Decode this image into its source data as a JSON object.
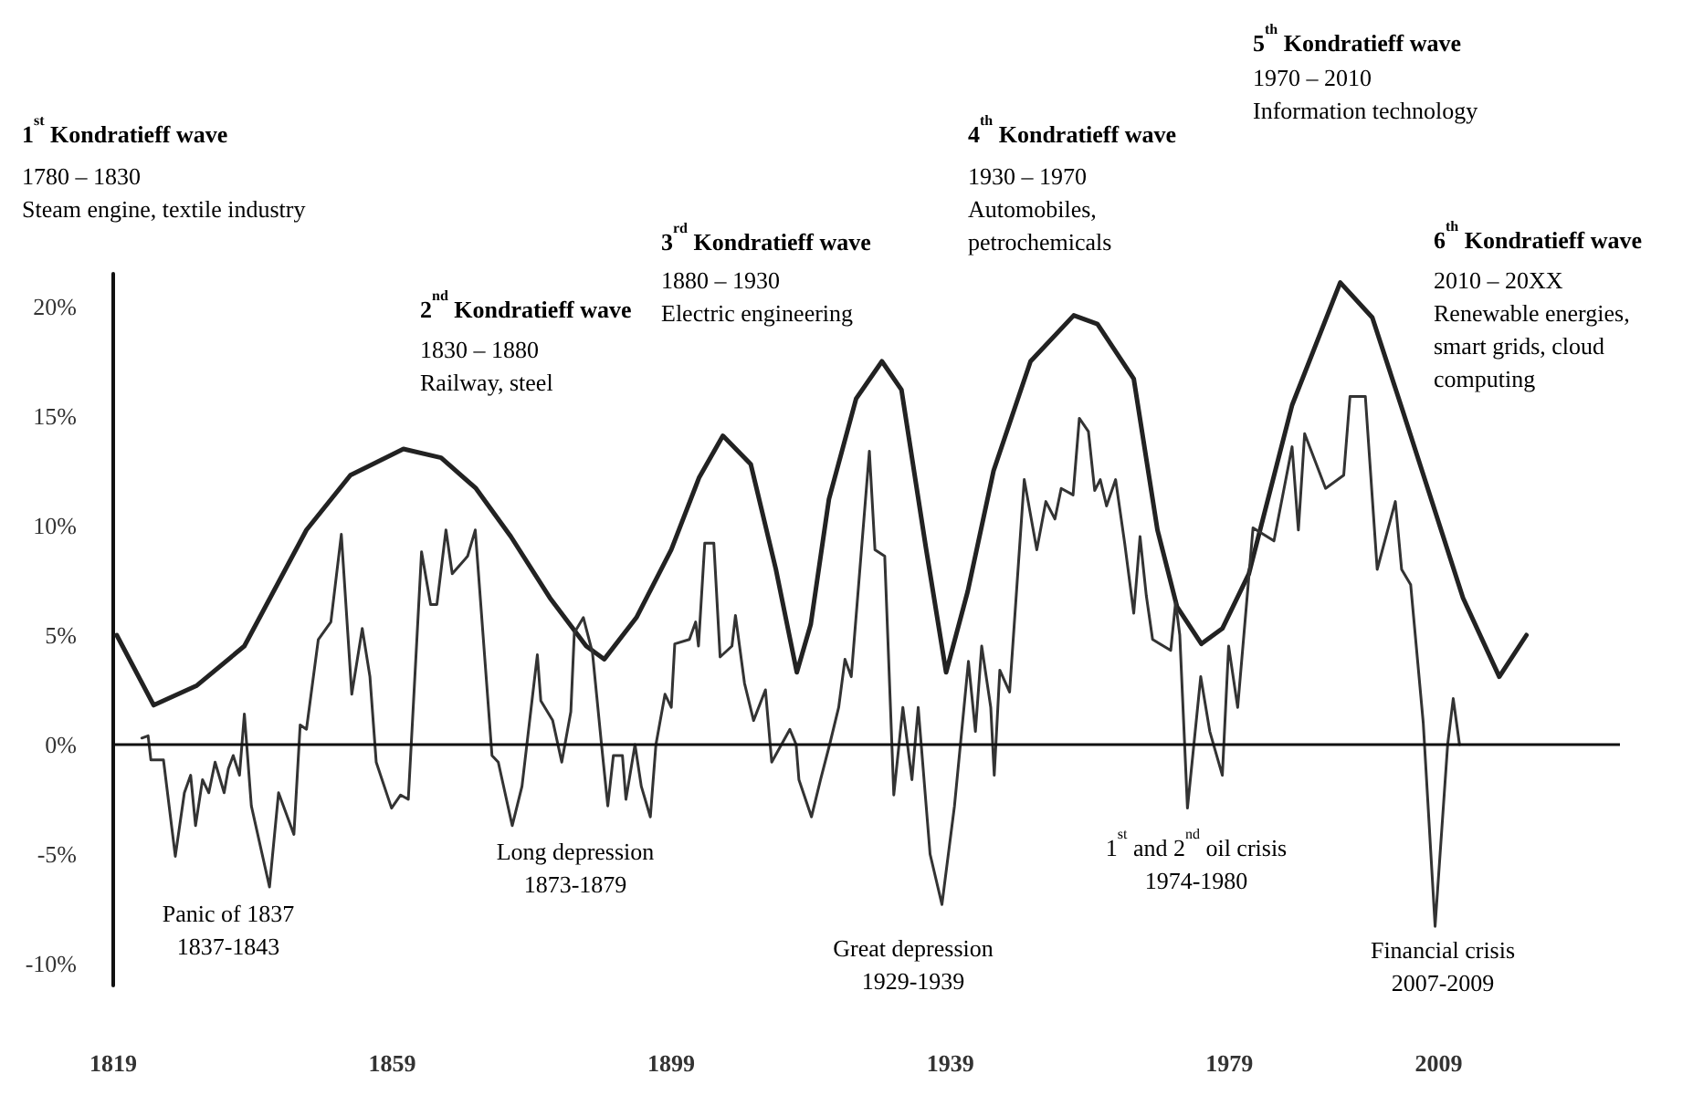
{
  "chart_data": {
    "type": "line",
    "marker": "none",
    "grid": false,
    "xlim": [
      1819,
      2035
    ],
    "xticks": [
      1819,
      1859,
      1899,
      1939,
      1979,
      2009
    ],
    "ylim": [
      -11,
      21.5
    ],
    "yticks": [
      {
        "value": -10,
        "label": "-10%"
      },
      {
        "value": -5,
        "label": "-5%"
      },
      {
        "value": 0,
        "label": "0%"
      },
      {
        "value": 5,
        "label": "5%"
      },
      {
        "value": 10,
        "label": "10%"
      },
      {
        "value": 15,
        "label": "15%"
      },
      {
        "value": 20,
        "label": "20%"
      }
    ],
    "ref_lines": [
      {
        "axis": "y",
        "value": 0,
        "color": "#111111"
      }
    ],
    "series": [
      {
        "color": "#222222",
        "x": [
          1819.5,
          1824.8,
          1831,
          1837.8,
          1846.7,
          1853,
          1860.6,
          1866,
          1871.0,
          1876,
          1881.6,
          1886.8,
          1889.4,
          1894,
          1899.0,
          1903,
          1906.4,
          1910.4,
          1914,
          1917.0,
          1919,
          1921.6,
          1925.5,
          1929.2,
          1932.0,
          1935.5,
          1938.4,
          1941.5,
          1945.2,
          1950.5,
          1956.7,
          1960.1,
          1965.3,
          1968.7,
          1971.5,
          1975.0,
          1978,
          1981.8,
          1988,
          1994.9,
          1999.5,
          2003.8,
          2012.5,
          2017.7,
          2021.6
        ],
        "values": [
          5.0,
          1.8,
          2.7,
          4.5,
          9.8,
          12.3,
          13.5,
          13.1,
          11.7,
          9.5,
          6.7,
          4.5,
          3.9,
          5.8,
          8.9,
          12.2,
          14.1,
          12.8,
          8.0,
          3.3,
          5.5,
          11.2,
          15.8,
          17.5,
          16.2,
          9.0,
          3.3,
          7.0,
          12.5,
          17.5,
          19.6,
          19.2,
          16.7,
          9.8,
          6.3,
          4.6,
          5.3,
          7.8,
          15.5,
          21.1,
          19.5,
          15.3,
          6.7,
          3.1,
          5.0
        ]
      },
      {
        "color": "#333333",
        "x": [
          1823.1,
          1824.0,
          1824.4,
          1826.2,
          1827.9,
          1829.2,
          1830.1,
          1830.8,
          1831.8,
          1832.7,
          1833.6,
          1834.9,
          1835.5,
          1836.2,
          1837.1,
          1837.8,
          1838.8,
          1841.4,
          1842.7,
          1844.9,
          1845.8,
          1846.7,
          1848.4,
          1850.2,
          1851.7,
          1853.2,
          1854.7,
          1855.8,
          1856.7,
          1858.9,
          1860.2,
          1861.3,
          1863.2,
          1864.5,
          1865.4,
          1866.7,
          1867.6,
          1869.8,
          1870.9,
          1873.3,
          1874.2,
          1876.2,
          1877.6,
          1879.8,
          1880.3,
          1882.0,
          1883.3,
          1884.6,
          1885.1,
          1886.4,
          1887.7,
          1889.0,
          1889.9,
          1890.7,
          1892.0,
          1892.5,
          1893.8,
          1894.7,
          1896.0,
          1896.8,
          1898.1,
          1899.0,
          1899.5,
          1901.6,
          1902.5,
          1902.9,
          1903.8,
          1905.1,
          1906.0,
          1907.7,
          1908.2,
          1909.5,
          1910.8,
          1912.5,
          1913.4,
          1916.0,
          1916.9,
          1917.3,
          1919.1,
          1920.4,
          1921.7,
          1923.0,
          1923.9,
          1924.8,
          1927.4,
          1928.2,
          1929.6,
          1930.9,
          1932.2,
          1933.5,
          1934.4,
          1936.1,
          1937.8,
          1939.6,
          1941.6,
          1942.6,
          1943.5,
          1944.8,
          1945.3,
          1946.1,
          1947.5,
          1949.6,
          1951.4,
          1952.7,
          1954.0,
          1954.9,
          1956.6,
          1957.5,
          1958.8,
          1959.7,
          1960.5,
          1961.4,
          1962.7,
          1964.0,
          1965.3,
          1966.2,
          1967.1,
          1968.0,
          1970.6,
          1971.3,
          1971.9,
          1973.0,
          1974.9,
          1976.2,
          1978.0,
          1978.9,
          1980.2,
          1982.4,
          1985.4,
          1988.0,
          1988.9,
          1989.8,
          1992.8,
          1995.4,
          1996.3,
          1998.5,
          2000.2,
          2002.8,
          2003.7,
          2005.0,
          2006.8,
          2008.5,
          2010.3,
          2011.1,
          2012.0
        ],
        "values": [
          0.3,
          0.4,
          -0.7,
          -0.7,
          -5.1,
          -2.2,
          -1.4,
          -3.7,
          -1.6,
          -2.2,
          -0.8,
          -2.2,
          -1.1,
          -0.5,
          -1.4,
          1.4,
          -2.8,
          -6.5,
          -2.2,
          -4.1,
          0.9,
          0.7,
          4.8,
          5.6,
          9.6,
          2.3,
          5.3,
          3.1,
          -0.8,
          -2.9,
          -2.3,
          -2.5,
          8.8,
          6.4,
          6.4,
          9.8,
          7.8,
          8.6,
          9.8,
          -0.5,
          -0.8,
          -3.7,
          -1.9,
          4.1,
          2.0,
          1.1,
          -0.8,
          1.5,
          5.1,
          5.8,
          4.2,
          0.0,
          -2.8,
          -0.5,
          -0.5,
          -2.5,
          0.0,
          -1.9,
          -3.3,
          0.0,
          2.3,
          1.7,
          4.6,
          4.8,
          5.6,
          4.5,
          9.2,
          9.2,
          4.0,
          4.5,
          5.9,
          2.8,
          1.1,
          2.5,
          -0.8,
          0.7,
          0.0,
          -1.6,
          -3.3,
          -1.6,
          0.0,
          1.7,
          3.9,
          3.1,
          13.4,
          8.9,
          8.6,
          -2.3,
          1.7,
          -1.6,
          1.7,
          -5.0,
          -7.3,
          -2.8,
          3.8,
          0.6,
          4.5,
          1.7,
          -1.4,
          3.4,
          2.4,
          12.1,
          8.9,
          11.1,
          10.3,
          11.7,
          11.4,
          14.9,
          14.3,
          11.6,
          12.1,
          10.9,
          12.1,
          9.2,
          6.0,
          9.5,
          6.8,
          4.8,
          4.3,
          6.5,
          5.0,
          -2.9,
          3.1,
          0.6,
          -1.4,
          4.5,
          1.7,
          9.9,
          9.3,
          13.6,
          9.8,
          14.2,
          11.7,
          12.3,
          15.9,
          15.9,
          8.0,
          11.1,
          8.0,
          7.3,
          1.0,
          -8.3,
          0.0,
          2.1,
          0.0
        ]
      }
    ],
    "annotations": [
      "1$^{st}$ Kondratieff wave",
      "1780 – 1830\nSteam engine, textile industry",
      "2$^{nd}$ Kondratieff wave",
      "1830 – 1880\nRailway, steel",
      "3$^{rd}$ Kondratieff wave",
      "1880 – 1930\nElectric engineering",
      "4$^{th}$ Kondratieff wave",
      "1930 – 1970\nAutomobiles,\npetrochemicals",
      "5$^{th}$ Kondratieff wave",
      "1970 – 2010\nInformation technology",
      "6$^{th}$ Kondratieff wave",
      "2010 – 20XX\nRenewable energies,\nsmart grids, cloud\ncomputing",
      "Panic of 1837\n1837-1843",
      "Long depression\n1873-1879",
      "Great depression\n1929-1939",
      "1$^{st}$ and 2$^{nd}$ oil crisis\n1974-1980",
      "Financial crisis\n2007-2009"
    ]
  }
}
